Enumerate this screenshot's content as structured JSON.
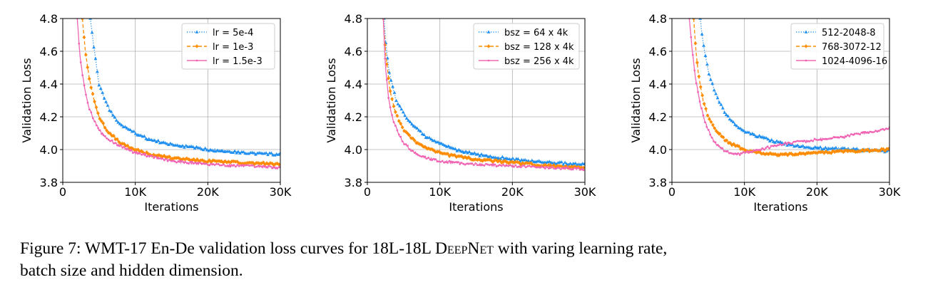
{
  "colors": {
    "blue": "#1f8ff0",
    "orange": "#ff8c00",
    "pink": "#f066b4"
  },
  "chart_data": [
    {
      "type": "line",
      "xlabel": "Iterations",
      "ylabel": "Validation Loss",
      "xlim": [
        0,
        30000
      ],
      "ylim": [
        3.8,
        4.8
      ],
      "xticks": [
        0,
        10000,
        20000,
        30000
      ],
      "xtick_labels": [
        "0",
        "10K",
        "20K",
        "30K"
      ],
      "yticks": [
        3.8,
        4.0,
        4.2,
        4.4,
        4.6,
        4.8
      ],
      "ytick_labels": [
        "3.8",
        "4.0",
        "4.2",
        "4.4",
        "4.6",
        "4.8"
      ],
      "grid": true,
      "legend_position": "top-right",
      "series": [
        {
          "name": "lr = 5e-4",
          "color_key": "blue",
          "style": "dotted",
          "marker": "triangle",
          "x": [
            3800,
            4300,
            5000,
            6000,
            7000,
            8000,
            10000,
            12000,
            15000,
            20000,
            25000,
            30000
          ],
          "y": [
            4.8,
            4.62,
            4.4,
            4.28,
            4.2,
            4.15,
            4.1,
            4.06,
            4.03,
            4.0,
            3.98,
            3.97
          ]
        },
        {
          "name": "lr = 1e-3",
          "color_key": "orange",
          "style": "dashed",
          "marker": "diamond",
          "x": [
            2700,
            3100,
            3600,
            4300,
            5000,
            6000,
            7000,
            8000,
            10000,
            12000,
            15000,
            20000,
            25000,
            30000
          ],
          "y": [
            4.8,
            4.6,
            4.45,
            4.3,
            4.2,
            4.12,
            4.08,
            4.04,
            4.0,
            3.97,
            3.95,
            3.93,
            3.92,
            3.91
          ]
        },
        {
          "name": "lr = 1.5e-3",
          "color_key": "pink",
          "style": "solid",
          "marker": "dot",
          "x": [
            2000,
            2400,
            3000,
            3600,
            4300,
            5000,
            6000,
            8000,
            10000,
            12000,
            15000,
            20000,
            25000,
            30000
          ],
          "y": [
            4.8,
            4.55,
            4.38,
            4.26,
            4.18,
            4.12,
            4.07,
            4.02,
            3.98,
            3.96,
            3.93,
            3.91,
            3.9,
            3.89
          ]
        }
      ]
    },
    {
      "type": "line",
      "xlabel": "Iterations",
      "ylabel": "Validation Loss",
      "xlim": [
        0,
        30000
      ],
      "ylim": [
        3.8,
        4.8
      ],
      "xticks": [
        0,
        10000,
        20000,
        30000
      ],
      "xtick_labels": [
        "0",
        "10K",
        "20K",
        "30K"
      ],
      "yticks": [
        3.8,
        4.0,
        4.2,
        4.4,
        4.6,
        4.8
      ],
      "ytick_labels": [
        "3.8",
        "4.0",
        "4.2",
        "4.4",
        "4.6",
        "4.8"
      ],
      "grid": true,
      "legend_position": "top-right",
      "series": [
        {
          "name": "bsz = 64 x 4k",
          "color_key": "blue",
          "style": "dotted",
          "marker": "triangle",
          "x": [
            2300,
            2600,
            3000,
            3500,
            4000,
            5000,
            6000,
            7000,
            8000,
            10000,
            12000,
            15000,
            20000,
            25000,
            30000
          ],
          "y": [
            4.8,
            4.62,
            4.48,
            4.38,
            4.3,
            4.22,
            4.16,
            4.12,
            4.08,
            4.04,
            4.0,
            3.97,
            3.94,
            3.92,
            3.91
          ]
        },
        {
          "name": "bsz = 128 x 4k",
          "color_key": "orange",
          "style": "dashed",
          "marker": "diamond",
          "x": [
            2200,
            2500,
            2900,
            3300,
            3800,
            4500,
            5000,
            6000,
            7000,
            8000,
            10000,
            12000,
            15000,
            20000,
            25000,
            30000
          ],
          "y": [
            4.8,
            4.6,
            4.44,
            4.32,
            4.24,
            4.16,
            4.12,
            4.07,
            4.04,
            4.01,
            3.98,
            3.96,
            3.94,
            3.92,
            3.9,
            3.89
          ]
        },
        {
          "name": "bsz = 256 x 4k",
          "color_key": "pink",
          "style": "solid",
          "marker": "dot",
          "x": [
            2200,
            2500,
            2900,
            3300,
            3800,
            4500,
            5000,
            6000,
            7000,
            8000,
            10000,
            12000,
            15000,
            20000,
            25000,
            30000
          ],
          "y": [
            4.8,
            4.5,
            4.32,
            4.22,
            4.15,
            4.08,
            4.04,
            4.0,
            3.97,
            3.95,
            3.93,
            3.92,
            3.91,
            3.9,
            3.89,
            3.88
          ]
        }
      ]
    },
    {
      "type": "line",
      "xlabel": "Iterations",
      "ylabel": "Validation Loss",
      "xlim": [
        0,
        30000
      ],
      "ylim": [
        3.8,
        4.8
      ],
      "xticks": [
        0,
        10000,
        20000,
        30000
      ],
      "xtick_labels": [
        "0",
        "10K",
        "20K",
        "30K"
      ],
      "yticks": [
        3.8,
        4.0,
        4.2,
        4.4,
        4.6,
        4.8
      ],
      "ytick_labels": [
        "3.8",
        "4.0",
        "4.2",
        "4.4",
        "4.6",
        "4.8"
      ],
      "grid": true,
      "legend_position": "top-right",
      "series": [
        {
          "name": "512-2048-8",
          "color_key": "blue",
          "style": "dotted",
          "marker": "triangle",
          "x": [
            3900,
            4300,
            5000,
            6000,
            7000,
            8000,
            9000,
            10000,
            12000,
            14000,
            16000,
            18000,
            20000,
            25000,
            30000
          ],
          "y": [
            4.8,
            4.65,
            4.48,
            4.34,
            4.25,
            4.18,
            4.14,
            4.11,
            4.08,
            4.05,
            4.03,
            4.02,
            4.01,
            4.0,
            3.99
          ]
        },
        {
          "name": "768-3072-12",
          "color_key": "orange",
          "style": "dashed",
          "marker": "diamond",
          "x": [
            3000,
            3400,
            3800,
            4300,
            5000,
            6000,
            7000,
            8000,
            9000,
            10000,
            12000,
            15000,
            20000,
            25000,
            30000
          ],
          "y": [
            4.8,
            4.55,
            4.42,
            4.3,
            4.2,
            4.12,
            4.07,
            4.04,
            4.02,
            4.0,
            3.98,
            3.97,
            3.98,
            3.99,
            4.0
          ]
        },
        {
          "name": "1024-4096-16",
          "color_key": "pink",
          "style": "solid",
          "marker": "dot",
          "x": [
            2400,
            2800,
            3300,
            3900,
            4500,
            5000,
            5500,
            6000,
            7000,
            8000,
            9000,
            10000,
            11000,
            12000,
            14000,
            16000,
            18000,
            20000,
            22000,
            24000,
            26000,
            28000,
            30000
          ],
          "y": [
            4.8,
            4.6,
            4.42,
            4.28,
            4.18,
            4.12,
            4.07,
            4.04,
            4.0,
            3.98,
            3.97,
            3.98,
            3.99,
            4.0,
            4.02,
            4.04,
            4.05,
            4.06,
            4.07,
            4.08,
            4.1,
            4.11,
            4.13
          ]
        }
      ]
    }
  ],
  "caption": {
    "line1_prefix": "Figure 7: WMT-17 En-De validation loss curves for 18L-18L ",
    "line1_smallcaps": "DeepNet",
    "line1_suffix": " with varing learning rate,",
    "line2": "batch size and hidden dimension."
  }
}
